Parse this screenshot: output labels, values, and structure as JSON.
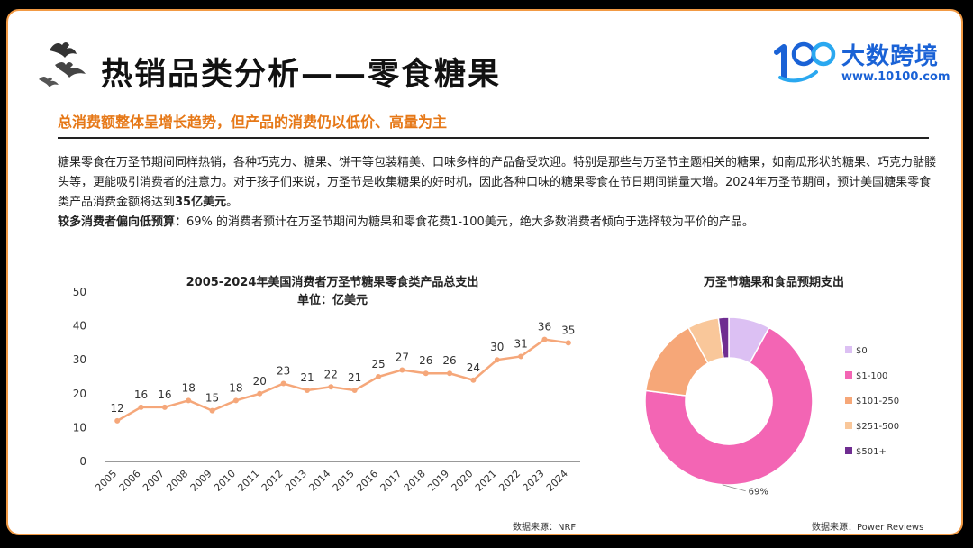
{
  "header": {
    "title": "热销品类分析——零食糖果",
    "logo_name": "大数跨境",
    "logo_url": "www.10100.com"
  },
  "subtitle": "总消费额整体呈增长趋势，但产品的消费仍以低价、高量为主",
  "paragraph": {
    "line1": "糖果零食在万圣节期间同样热销，各种巧克力、糖果、饼干等包装精美、口味多样的产品备受欢迎。特别是那些与万圣节主题相关的糖果，如南瓜形状的糖果、巧克力骷髅头等，更能吸引消费者的注意力。对于孩子们来说，万圣节是收集糖果的好时机，因此各种口味的糖果零食在节日期间销量大增。2024年万圣节期间，预计美国糖果零食类产品消费金额将达到",
    "highlight1": "35亿美元",
    "tail1": "。",
    "bold_label": "较多消费者偏向低预算：",
    "line2": "69% 的消费者预计在万圣节期间为糖果和零食花费1-100美元，绝大多数消费者倾向于选择较为平价的产品。"
  },
  "chart_data": [
    {
      "type": "line",
      "title": "2005-2024年美国消费者万圣节糖果零食类产品总支出",
      "subtitle": "单位：亿美元",
      "categories": [
        "2005",
        "2006",
        "2007",
        "2008",
        "2009",
        "2010",
        "2011",
        "2012",
        "2013",
        "2014",
        "2015",
        "2016",
        "2017",
        "2018",
        "2019",
        "2020",
        "2021",
        "2022",
        "2023",
        "2024"
      ],
      "values": [
        12,
        16,
        16,
        18,
        15,
        18,
        20,
        23,
        21,
        22,
        21,
        25,
        27,
        26,
        26,
        24,
        30,
        31,
        36,
        35
      ],
      "yticks": [
        0,
        10,
        20,
        30,
        40,
        50
      ],
      "ylim": [
        0,
        50
      ],
      "grid": false,
      "color": "#f5a77a",
      "source": "数据来源：NRF"
    },
    {
      "type": "pie",
      "title": "万圣节糖果和食品预期支出",
      "donut": true,
      "slices": [
        {
          "label": "$0",
          "value": 8,
          "color": "#dcc0f3"
        },
        {
          "label": "$1-100",
          "value": 69,
          "color": "#f365b4"
        },
        {
          "label": "$101-250",
          "value": 15,
          "color": "#f6a778"
        },
        {
          "label": "$251-500",
          "value": 6,
          "color": "#f9c79a"
        },
        {
          "label": "$501+",
          "value": 2,
          "color": "#6f2d91"
        }
      ],
      "annotation": "69%",
      "legend_position": "right",
      "source": "数据来源：Power Reviews"
    }
  ]
}
